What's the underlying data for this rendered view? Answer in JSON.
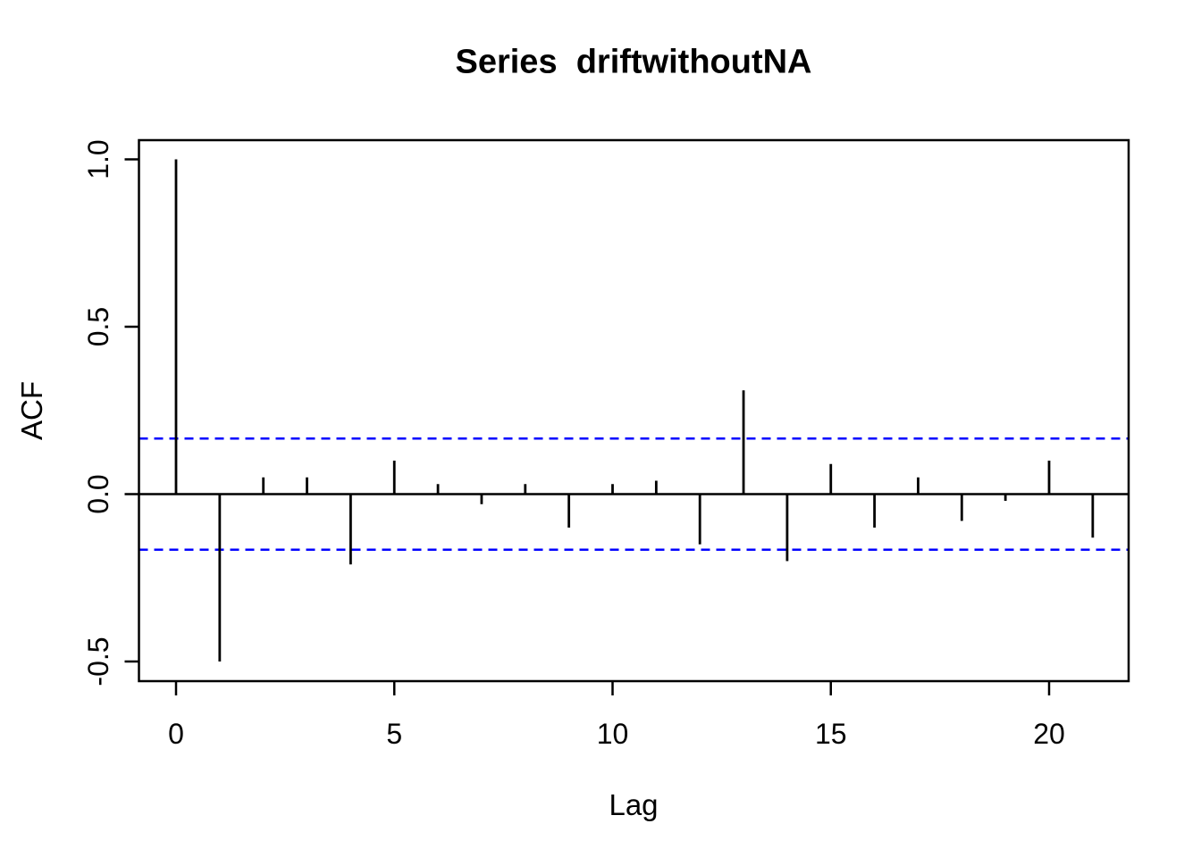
{
  "chart_data": {
    "type": "bar",
    "subtype": "acf-stem-plot",
    "title": "Series  driftwithoutNA",
    "xlabel": "Lag",
    "ylabel": "ACF",
    "x": [
      0,
      1,
      2,
      3,
      4,
      5,
      6,
      7,
      8,
      9,
      10,
      11,
      12,
      13,
      14,
      15,
      16,
      17,
      18,
      19,
      20,
      21
    ],
    "values": [
      1.0,
      -0.5,
      0.05,
      0.05,
      -0.21,
      0.1,
      0.03,
      -0.03,
      0.03,
      -0.1,
      0.03,
      0.04,
      -0.15,
      0.31,
      -0.2,
      0.09,
      -0.1,
      0.05,
      -0.08,
      -0.02,
      0.1,
      -0.13
    ],
    "confidence_upper": 0.166,
    "confidence_lower": -0.166,
    "x_ticks": [
      0,
      5,
      10,
      15,
      20
    ],
    "x_tick_labels": [
      "0",
      "5",
      "10",
      "15",
      "20"
    ],
    "y_ticks": [
      -0.5,
      0.0,
      0.5,
      1.0
    ],
    "y_tick_labels": [
      "-0.5",
      "0.0",
      "0.5",
      "1.0"
    ],
    "xlim": [
      -0.84,
      21.84
    ],
    "ylim": [
      -0.56,
      1.06
    ],
    "grid": false,
    "legend": null,
    "colors": {
      "stem": "#000000",
      "axis": "#000000",
      "ci_line": "#0000FF",
      "background": "#FFFFFF",
      "text": "#000000"
    }
  }
}
